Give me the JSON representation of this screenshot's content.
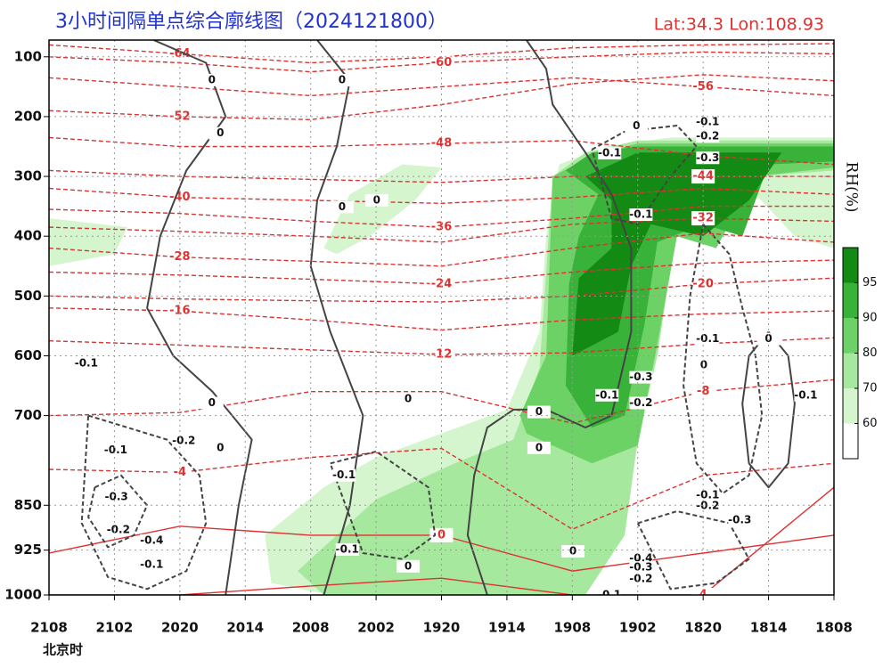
{
  "chart_data": {
    "type": "time-section",
    "title": "3小时间隔单点综合廓线图（2024121800）",
    "location": "Lat:34.3  Lon:108.93",
    "xlabel": "北京时",
    "categories": [
      "2108",
      "2102",
      "2020",
      "2014",
      "2008",
      "2002",
      "1920",
      "1914",
      "1908",
      "1902",
      "1820",
      "1814",
      "1808"
    ],
    "ylim": [
      72,
      1000
    ],
    "yticks": [
      100,
      200,
      300,
      400,
      500,
      600,
      700,
      850,
      925,
      1000
    ],
    "grid": true,
    "colorbar": {
      "label": "RH(%)",
      "levels": [
        60,
        70,
        80,
        90,
        95
      ],
      "colors": [
        "#ffffff",
        "#d4f5cd",
        "#a6e89d",
        "#6cd265",
        "#38b238",
        "#138a13"
      ]
    },
    "rh_regions": [
      {
        "level": 60,
        "x": [
          3.3,
          4.2,
          5.0,
          6.0,
          7.0,
          7.5,
          7.6,
          7.8,
          8.5,
          9.5,
          12,
          12,
          11.4,
          10.8,
          10.2,
          9.5,
          9.3,
          9.1,
          8.8,
          8.4,
          8.0,
          6.5,
          5.0,
          4.3,
          3.4
        ],
        "p": [
          900,
          820,
          770,
          730,
          690,
          560,
          400,
          280,
          250,
          235,
          235,
          420,
          400,
          330,
          300,
          320,
          500,
          700,
          850,
          950,
          1000,
          1000,
          1000,
          1000,
          980
        ]
      },
      {
        "level": 60,
        "x": [
          4.2,
          4.6,
          5.4,
          6.0,
          5.6,
          4.9,
          4.4
        ],
        "p": [
          420,
          330,
          280,
          285,
          340,
          400,
          430
        ]
      },
      {
        "level": 60,
        "x": [
          0,
          1.2,
          1.0,
          0
        ],
        "p": [
          370,
          385,
          430,
          450
        ]
      },
      {
        "level": 70,
        "x": [
          3.8,
          5.0,
          6.2,
          7.1,
          7.5,
          7.7,
          8.2,
          9,
          12,
          12,
          10.8,
          10.2,
          9.6,
          9.3,
          9.0,
          8.8,
          8.2,
          7.2,
          5.5,
          4.2
        ],
        "p": [
          960,
          840,
          780,
          740,
          620,
          300,
          260,
          240,
          240,
          290,
          300,
          420,
          380,
          600,
          740,
          900,
          1000,
          1000,
          1000,
          1000
        ]
      },
      {
        "level": 80,
        "x": [
          7.2,
          7.6,
          7.7,
          8.3,
          9,
          12,
          12,
          10.8,
          10.2,
          9.6,
          9.3,
          9.0,
          8.3,
          7.3
        ],
        "p": [
          700,
          600,
          300,
          265,
          245,
          245,
          285,
          300,
          420,
          400,
          580,
          750,
          780,
          730
        ]
      },
      {
        "level": 90,
        "x": [
          7.9,
          7.95,
          8.1,
          8.4,
          7.9,
          8.3,
          9,
          12,
          12,
          11,
          10.6,
          10,
          9.3,
          9.1,
          8.8,
          8.3
        ],
        "p": [
          650,
          480,
          400,
          330,
          290,
          260,
          250,
          250,
          275,
          280,
          400,
          380,
          410,
          550,
          700,
          720
        ]
      },
      {
        "level": 95,
        "x": [
          8,
          8.1,
          8.6,
          8.6,
          8.2,
          9,
          11.2,
          10.7,
          10,
          9.2,
          8.9,
          8.7
        ],
        "p": [
          600,
          470,
          420,
          340,
          300,
          260,
          260,
          340,
          400,
          380,
          450,
          560
        ]
      }
    ],
    "isotherm_x": [
      0,
      2,
      4,
      6,
      8,
      10,
      12
    ],
    "isotherms": [
      {
        "value": -64,
        "p": [
          80,
          95,
          110,
          100,
          85,
          80,
          78
        ]
      },
      {
        "value": -60,
        "p": [
          100,
          110,
          125,
          110,
          100,
          92,
          95
        ]
      },
      {
        "value": -56,
        "p": [
          135,
          150,
          165,
          150,
          135,
          150,
          165
        ]
      },
      {
        "value": -52,
        "p": [
          190,
          200,
          205,
          180,
          145,
          130,
          140
        ]
      },
      {
        "value": -48,
        "p": [
          235,
          250,
          250,
          245,
          240,
          265,
          280
        ]
      },
      {
        "value": -44,
        "p": [
          290,
          300,
          305,
          310,
          300,
          300,
          300
        ]
      },
      {
        "value": -40,
        "p": [
          320,
          335,
          340,
          345,
          335,
          320,
          330
        ]
      },
      {
        "value": -36,
        "p": [
          355,
          362,
          375,
          385,
          370,
          350,
          350
        ]
      },
      {
        "value": -32,
        "p": [
          385,
          392,
          400,
          410,
          380,
          370,
          375
        ]
      },
      {
        "value": -28,
        "p": [
          420,
          435,
          442,
          450,
          420,
          395,
          410
        ]
      },
      {
        "value": -24,
        "p": [
          460,
          465,
          472,
          480,
          460,
          445,
          440
        ]
      },
      {
        "value": -20,
        "p": [
          500,
          505,
          508,
          510,
          500,
          480,
          470
        ]
      },
      {
        "value": -16,
        "p": [
          520,
          525,
          540,
          557,
          540,
          530,
          525
        ]
      },
      {
        "value": -12,
        "p": [
          575,
          582,
          590,
          598,
          595,
          580,
          570
        ]
      },
      {
        "value": -8,
        "p": [
          700,
          695,
          660,
          660,
          713,
          660,
          640
        ]
      },
      {
        "value": -4,
        "p": [
          790,
          795,
          770,
          755,
          890,
          800,
          780
        ]
      },
      {
        "value": 0,
        "p": [
          930,
          885,
          900,
          900,
          960,
          930,
          900
        ]
      },
      {
        "value": 4,
        "p": [
          1000,
          1000,
          985,
          972,
          1000,
          1000,
          820
        ]
      }
    ],
    "omega_contours": [
      {
        "value": 0,
        "x": [
          1.6,
          2.4,
          2.7,
          2.1,
          1.7,
          1.5,
          1.9,
          2.5,
          3.1,
          2.9,
          2.7
        ],
        "p": [
          72,
          110,
          200,
          290,
          400,
          520,
          600,
          660,
          740,
          850,
          1000
        ]
      },
      {
        "value": 0,
        "x": [
          4.1,
          4.6,
          4.4,
          4.1,
          4.0,
          4.3,
          4.8,
          4.6,
          4.2
        ],
        "p": [
          72,
          140,
          250,
          340,
          450,
          560,
          700,
          850,
          1000
        ]
      },
      {
        "value": 0,
        "x": [
          7.3,
          7.6,
          7.7,
          8.2,
          8.6,
          8.9,
          8.9,
          8.6,
          8.2,
          7.6,
          7.1,
          6.7,
          6.5,
          6.4,
          6.7
        ],
        "p": [
          72,
          120,
          180,
          260,
          330,
          420,
          560,
          700,
          720,
          690,
          690,
          720,
          800,
          900,
          1000
        ]
      },
      {
        "value": -0.1,
        "x": [
          8.3,
          8.8,
          9.6,
          9.9,
          9.5,
          9.0,
          8.6,
          8.3
        ],
        "p": [
          255,
          225,
          215,
          250,
          300,
          380,
          370,
          255
        ]
      },
      {
        "value": -0.1,
        "x": [
          10.0,
          10.4,
          10.6,
          10.8,
          10.9,
          10.7,
          10.3,
          9.9,
          9.7,
          9.8,
          10.0
        ],
        "p": [
          380,
          430,
          520,
          600,
          700,
          800,
          830,
          780,
          650,
          500,
          380
        ]
      },
      {
        "value": 0,
        "x": [
          11.0,
          11.3,
          11.4,
          11.3,
          11.0,
          10.7,
          10.6,
          10.7,
          11.0
        ],
        "p": [
          560,
          600,
          680,
          780,
          820,
          780,
          680,
          600,
          560
        ]
      },
      {
        "value": -0.1,
        "x": [
          0.6,
          1.2,
          1.8,
          2.3,
          2.4,
          2.1,
          1.5,
          0.9,
          0.5,
          0.6
        ],
        "p": [
          700,
          720,
          740,
          800,
          880,
          960,
          990,
          970,
          880,
          700
        ]
      },
      {
        "value": -0.3,
        "x": [
          0.7,
          1.1,
          1.5,
          1.3,
          0.9,
          0.6,
          0.7
        ],
        "p": [
          820,
          800,
          850,
          900,
          920,
          870,
          820
        ]
      },
      {
        "value": -0.1,
        "x": [
          4.3,
          5.0,
          5.8,
          5.9,
          5.4,
          4.8,
          4.3
        ],
        "p": [
          780,
          760,
          820,
          900,
          940,
          930,
          780
        ]
      },
      {
        "value": -0.3,
        "x": [
          9.0,
          9.6,
          10.4,
          10.7,
          10.2,
          9.5,
          9.0
        ],
        "p": [
          880,
          860,
          880,
          940,
          980,
          990,
          880
        ]
      }
    ],
    "omega_labels": [
      {
        "value": 0,
        "x": 2.49,
        "p": 139
      },
      {
        "value": 0,
        "x": 2.62,
        "p": 228
      },
      {
        "value": 0,
        "x": 4.48,
        "p": 139
      },
      {
        "value": 0,
        "x": 4.48,
        "p": 351
      },
      {
        "value": 0,
        "x": 5.01,
        "p": 340
      },
      {
        "value": -0.1,
        "x": 10.07,
        "p": 209
      },
      {
        "value": -0.2,
        "x": 10.07,
        "p": 233
      },
      {
        "value": 0,
        "x": 8.98,
        "p": 216
      },
      {
        "value": -0.1,
        "x": 8.57,
        "p": 261
      },
      {
        "value": -0.3,
        "x": 10.07,
        "p": 269
      },
      {
        "value": -0.1,
        "x": 9.05,
        "p": 364
      },
      {
        "value": -0.1,
        "x": 0.57,
        "p": 613
      },
      {
        "value": 0,
        "x": 2.49,
        "p": 679
      },
      {
        "value": 0,
        "x": 5.49,
        "p": 672
      },
      {
        "value": -0.1,
        "x": 1.02,
        "p": 758
      },
      {
        "value": -0.2,
        "x": 2.06,
        "p": 742
      },
      {
        "value": 0,
        "x": 2.62,
        "p": 754
      },
      {
        "value": -0.1,
        "x": 4.51,
        "p": 800
      },
      {
        "value": -0.3,
        "x": 1.03,
        "p": 836
      },
      {
        "value": -0.2,
        "x": 1.06,
        "p": 891
      },
      {
        "value": -0.4,
        "x": 1.57,
        "p": 909
      },
      {
        "value": -0.1,
        "x": 1.57,
        "p": 949
      },
      {
        "value": -0.1,
        "x": 4.56,
        "p": 924
      },
      {
        "value": 0,
        "x": 5.49,
        "p": 952
      },
      {
        "value": 0,
        "x": 7.49,
        "p": 694
      },
      {
        "value": 0,
        "x": 7.49,
        "p": 754
      },
      {
        "value": -0.3,
        "x": 9.05,
        "p": 636
      },
      {
        "value": -0.1,
        "x": 8.53,
        "p": 666
      },
      {
        "value": -0.2,
        "x": 9.05,
        "p": 679
      },
      {
        "value": -0.1,
        "x": 10.07,
        "p": 572
      },
      {
        "value": 0,
        "x": 10.01,
        "p": 616
      },
      {
        "value": 0,
        "x": 11.0,
        "p": 572
      },
      {
        "value": -0.1,
        "x": 11.57,
        "p": 666
      },
      {
        "value": -0.1,
        "x": 10.07,
        "p": 833
      },
      {
        "value": -0.2,
        "x": 10.07,
        "p": 851
      },
      {
        "value": -0.3,
        "x": 10.56,
        "p": 875
      },
      {
        "value": 0,
        "x": 8.01,
        "p": 927
      },
      {
        "value": -0.4,
        "x": 9.05,
        "p": 939
      },
      {
        "value": -0.3,
        "x": 9.05,
        "p": 954
      },
      {
        "value": -0.2,
        "x": 9.05,
        "p": 973
      },
      {
        "value": -0.1,
        "x": 8.57,
        "p": 1000
      }
    ]
  }
}
